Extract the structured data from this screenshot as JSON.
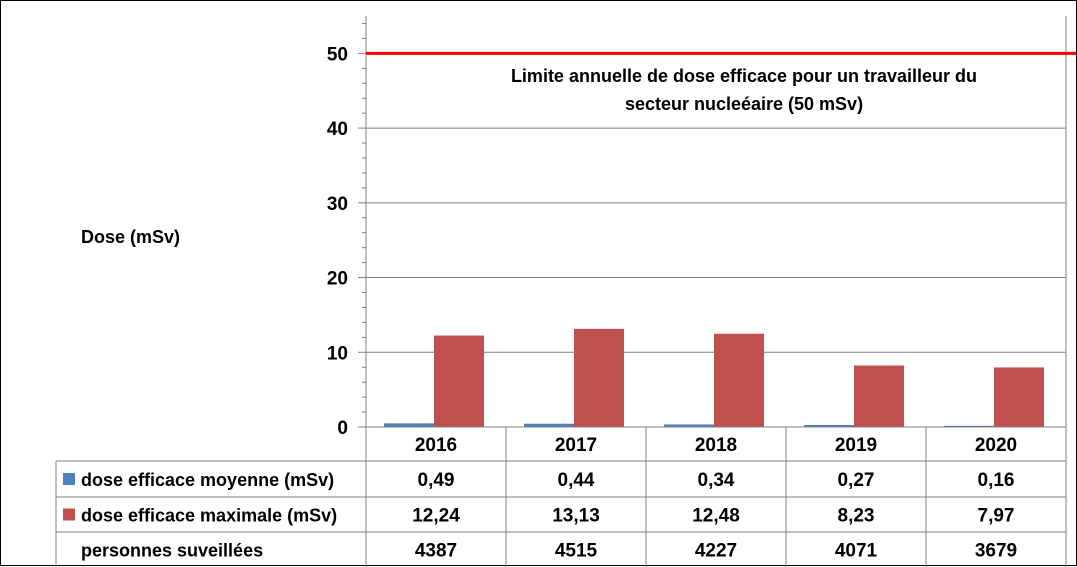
{
  "chart_data": {
    "type": "bar",
    "categories": [
      "2016",
      "2017",
      "2018",
      "2019",
      "2020"
    ],
    "series": [
      {
        "name": "dose efficace moyenne (mSv)",
        "values": [
          0.49,
          0.44,
          0.34,
          0.27,
          0.16
        ],
        "labels": [
          "0,49",
          "0,44",
          "0,34",
          "0,27",
          "0,16"
        ],
        "color": "#4f81bd"
      },
      {
        "name": "dose efficace maximale (mSv)",
        "values": [
          12.24,
          13.13,
          12.48,
          8.23,
          7.97
        ],
        "labels": [
          "12,24",
          "13,13",
          "12,48",
          "8,23",
          "7,97"
        ],
        "color": "#c0504d"
      }
    ],
    "table_extra_row": {
      "name": "personnes suveillées",
      "values": [
        "4387",
        "4515",
        "4227",
        "4071",
        "3679"
      ]
    },
    "ylabel": "Dose (mSv)",
    "ylim": [
      0,
      55
    ],
    "yticks": [
      0,
      10,
      20,
      30,
      40,
      50
    ],
    "grid": true,
    "reference_line": {
      "value": 50,
      "color": "#ff0000",
      "label_lines": [
        "Limite annuelle de dose efficace pour un travailleur du",
        "secteur nucleéaire (50 mSv)"
      ]
    }
  }
}
